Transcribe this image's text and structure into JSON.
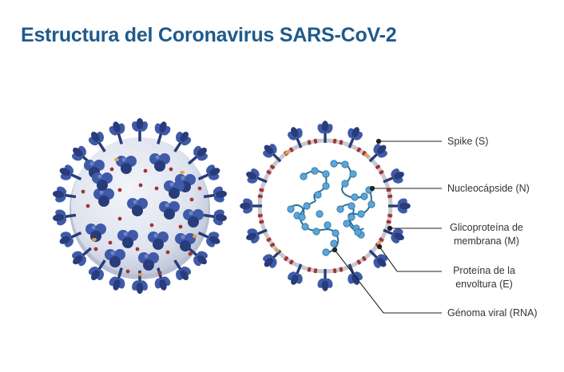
{
  "title": "Estructura del Coronavirus SARS-CoV-2",
  "labels": {
    "spike": "Spike (S)",
    "nucleocapsid": "Nucleocápside (N)",
    "membrane_line1": "Glicoproteína de",
    "membrane_line2": "membrana (M)",
    "envelope_line1": "Proteína de la",
    "envelope_line2": "envoltura (E)",
    "genome": "Génoma viral (RNA)"
  },
  "colors": {
    "title": "#1f5a8c",
    "spike": "#3f5aa8",
    "spike_dark": "#283c7a",
    "membrane_protein": "#a2333a",
    "envelope_protein": "#e7a14c",
    "envelope": "#c8c8cc",
    "virion_body": "#dfe3ee",
    "nucleocapsid": "#5aa6dc",
    "rna": "#2a6f96",
    "leader_line": "#222222"
  },
  "icons": [
    "virion-3d-illustration",
    "virion-cross-section"
  ]
}
